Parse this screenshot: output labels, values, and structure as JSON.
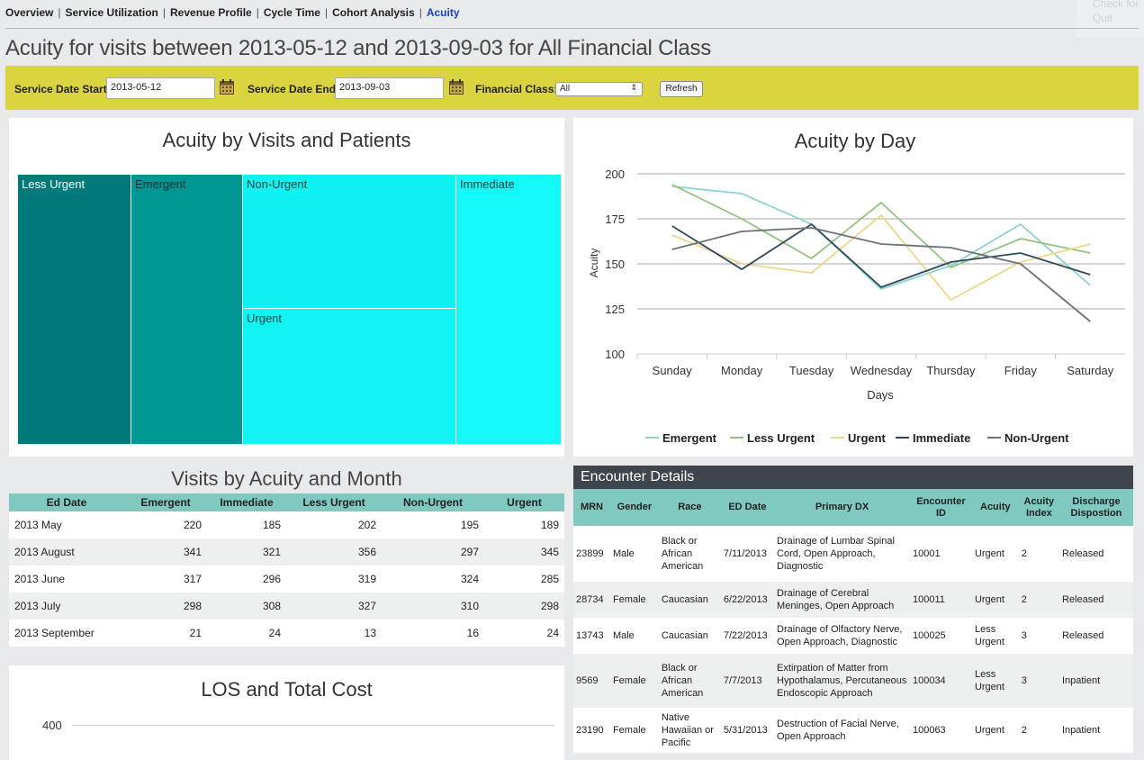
{
  "nav": {
    "items": [
      "Overview",
      "Service Utilization",
      "Revenue Profile",
      "Cycle Time",
      "Cohort Analysis",
      "Acuity"
    ],
    "ghost": [
      "Check for",
      "Quit"
    ]
  },
  "page_title": "Acuity for visits between 2013-05-12 and 2013-09-03 for All Financial Class",
  "filters": {
    "start_label": "Service Date Start:",
    "start_value": "2013-05-12",
    "end_label": "Service Date End:",
    "end_value": "2013-09-03",
    "class_label": "Financial Class:",
    "class_value": "All",
    "refresh_label": "Refresh"
  },
  "treemap": {
    "title": "Acuity by Visits and Patients",
    "cells": [
      "Less Urgent",
      "Emergent",
      "Non-Urgent",
      "Urgent",
      "Immediate"
    ],
    "colors": [
      "#007b7a",
      "#009694",
      "#10f2f2",
      "#12f3f3",
      "#15f8f8"
    ]
  },
  "chart_data": {
    "type": "line",
    "title": "Acuity by Day",
    "xlabel": "Days",
    "ylabel": "Acuity",
    "categories": [
      "Sunday",
      "Monday",
      "Tuesday",
      "Wednesday",
      "Thursday",
      "Friday",
      "Saturday"
    ],
    "yticks": [
      "100",
      "125",
      "150",
      "175",
      "200"
    ],
    "ylim": [
      100,
      200
    ],
    "series": [
      {
        "name": "Emergent",
        "color": "#8fd3d0",
        "values": [
          193,
          189,
          172,
          136,
          149,
          172,
          138
        ]
      },
      {
        "name": "Less Urgent",
        "color": "#93c47d",
        "values": [
          194,
          175,
          153,
          184,
          148,
          164,
          156
        ]
      },
      {
        "name": "Urgent",
        "color": "#ecd88a",
        "values": [
          166,
          150,
          145,
          177,
          130,
          151,
          161
        ]
      },
      {
        "name": "Immediate",
        "color": "#2e4a5e",
        "values": [
          171,
          147,
          172,
          137,
          151,
          156,
          144
        ]
      },
      {
        "name": "Non-Urgent",
        "color": "#6b7378",
        "values": [
          158,
          168,
          170,
          161,
          159,
          150,
          118
        ]
      }
    ]
  },
  "monthly": {
    "title": "Visits by Acuity and Month",
    "columns": [
      "Ed Date",
      "Emergent",
      "Immediate",
      "Less Urgent",
      "Non-Urgent",
      "Urgent"
    ],
    "rows": [
      [
        "2013 May",
        "220",
        "185",
        "202",
        "195",
        "189"
      ],
      [
        "2013 August",
        "341",
        "321",
        "356",
        "297",
        "345"
      ],
      [
        "2013 June",
        "317",
        "296",
        "319",
        "324",
        "285"
      ],
      [
        "2013 July",
        "298",
        "308",
        "327",
        "310",
        "298"
      ],
      [
        "2013 September",
        "21",
        "24",
        "13",
        "16",
        "24"
      ]
    ]
  },
  "los": {
    "title": "LOS and Total Cost",
    "ytick": "400"
  },
  "encounters": {
    "title": "Encounter Details",
    "columns": [
      "MRN",
      "Gender",
      "Race",
      "ED Date",
      "Primary DX",
      "Encounter ID",
      "Acuity",
      "Acuity Index",
      "Discharge Dispostion"
    ],
    "rows": [
      [
        "23899",
        "Male",
        "Black or African American",
        "7/11/2013",
        "Drainage of Lumbar Spinal Cord, Open Approach, Diagnostic",
        "10001",
        "Urgent",
        "2",
        "Released"
      ],
      [
        "28734",
        "Female",
        "Caucasian",
        "6/22/2013",
        "Drainage of Cerebral Meninges, Open Approach",
        "100011",
        "Urgent",
        "2",
        "Released"
      ],
      [
        "13743",
        "Male",
        "Caucasian",
        "7/22/2013",
        "Drainage of Olfactory Nerve, Open Approach, Diagnostic",
        "100025",
        "Less Urgent",
        "3",
        "Released"
      ],
      [
        "9569",
        "Female",
        "Black or African American",
        "7/7/2013",
        "Extirpation of Matter from Hypothalamus, Percutaneous Endoscopic Approach",
        "100034",
        "Less Urgent",
        "3",
        "Inpatient"
      ],
      [
        "23190",
        "Female",
        "Native Hawaiian or Pacific",
        "5/31/2013",
        "Destruction of Facial Nerve, Open Approach",
        "100063",
        "Urgent",
        "2",
        "Inpatient"
      ]
    ]
  }
}
